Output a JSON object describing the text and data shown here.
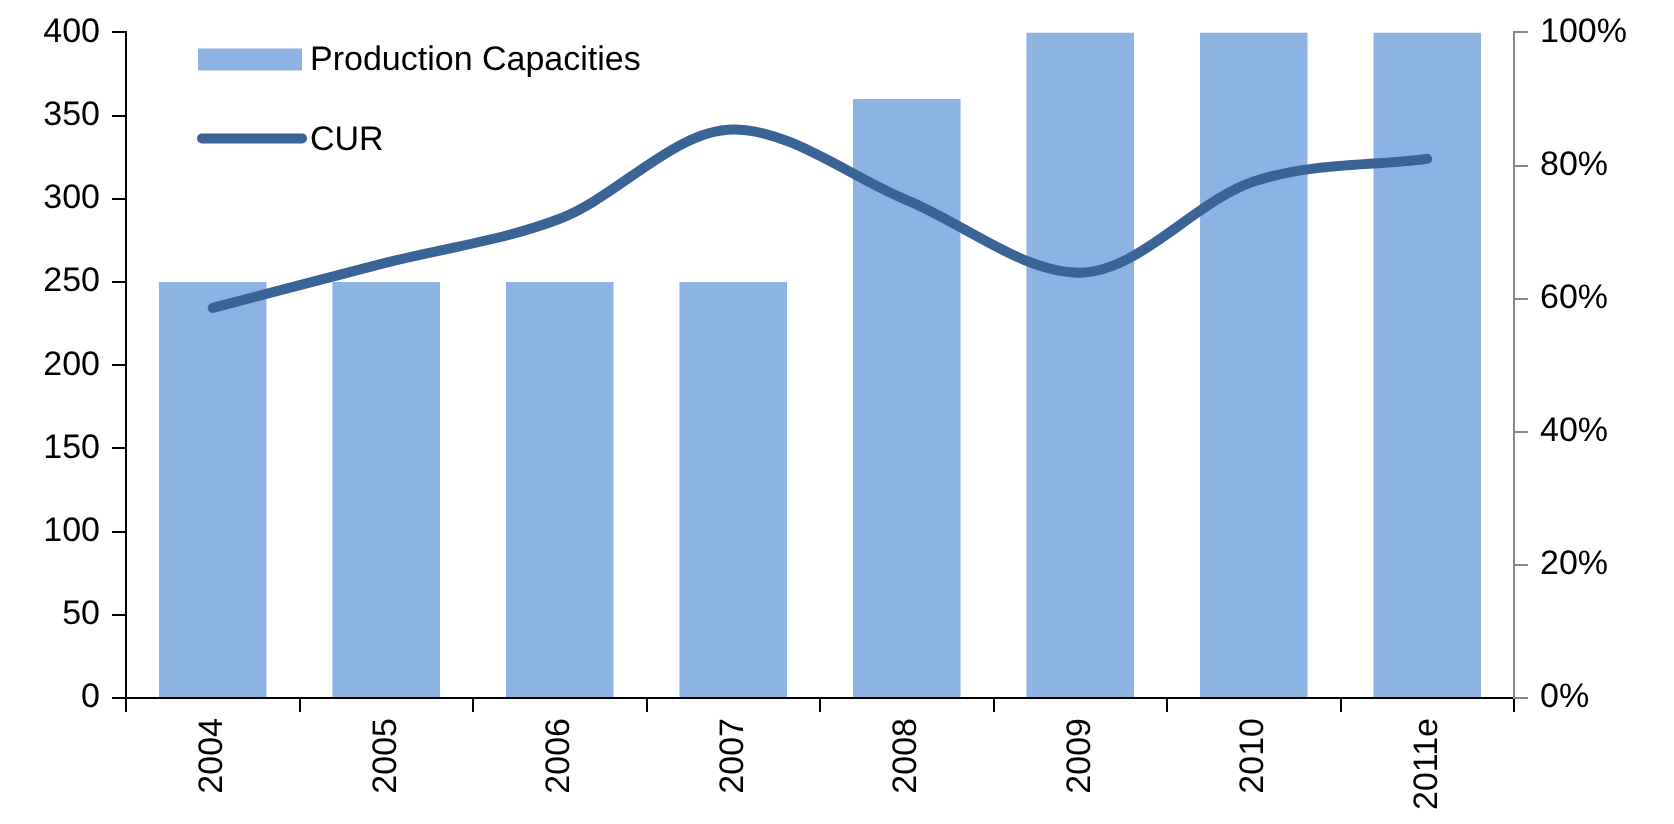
{
  "chart_data": {
    "type": "bar",
    "categories": [
      "2004",
      "2005",
      "2006",
      "2007",
      "2008",
      "2009",
      "2010",
      "2011e"
    ],
    "series": [
      {
        "name": "Production Capacities",
        "color": "#8db3e2",
        "values": [
          250,
          250,
          250,
          250,
          360,
          400,
          400,
          400
        ]
      },
      {
        "name": "CUR",
        "type": "line",
        "axis": "y2",
        "color": "#3a6496",
        "values": [
          58.6,
          65.4,
          72,
          85.4,
          74.8,
          63.9,
          77.6,
          81
        ]
      }
    ],
    "ylim": [
      0,
      400
    ],
    "yticks": [
      0,
      50,
      100,
      150,
      200,
      250,
      300,
      350,
      400
    ],
    "y2lim": [
      0,
      100
    ],
    "y2ticks": [
      {
        "value": 0,
        "label": "0%"
      },
      {
        "value": 20,
        "label": "20%"
      },
      {
        "value": 40,
        "label": "40%"
      },
      {
        "value": 60,
        "label": "60%"
      },
      {
        "value": 80,
        "label": "80%"
      },
      {
        "value": 100,
        "label": "100%"
      }
    ],
    "grid": false,
    "legend": "top left",
    "marker": "none"
  }
}
